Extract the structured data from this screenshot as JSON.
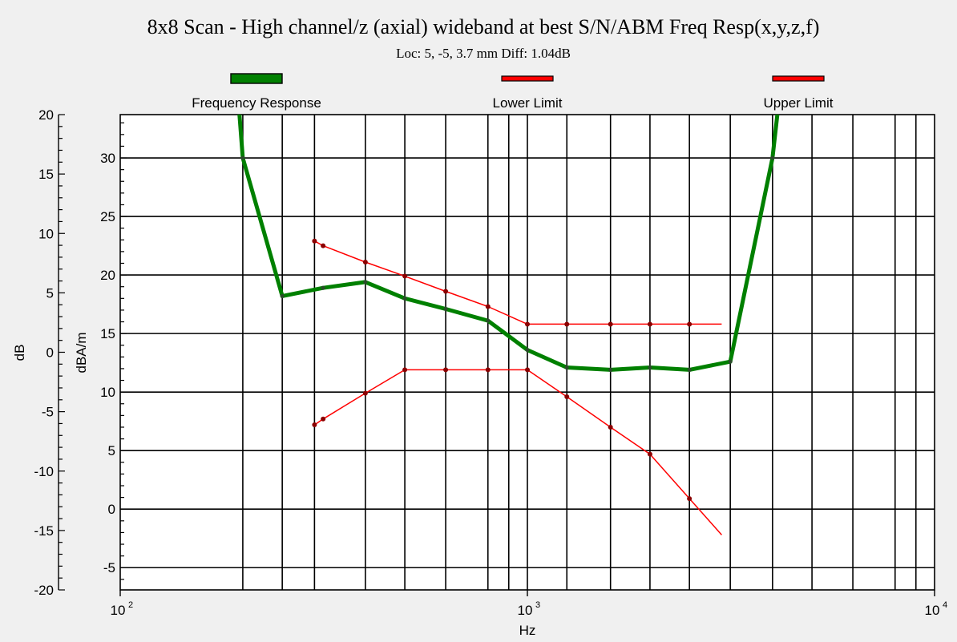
{
  "chart_data": {
    "type": "line",
    "title": "8x8 Scan - High channel/z (axial) wideband at best S/N/ABM Freq Resp(x,y,z,f)",
    "subtitle": "Loc: 5, -5, 3.7 mm Diff: 1.04dB",
    "xlabel": "Hz",
    "ylabel_left": "dB",
    "ylabel_right": "dBA/m",
    "x_scale": "log",
    "xlim": [
      100,
      10000
    ],
    "x_tick_labels": [
      {
        "value": 100,
        "base": "10",
        "exp": "2"
      },
      {
        "value": 1000,
        "base": "10",
        "exp": "3"
      },
      {
        "value": 10000,
        "base": "10",
        "exp": "4"
      }
    ],
    "ylim_left": [
      -20,
      20
    ],
    "y_left_ticks": [
      "20",
      "15",
      "10",
      "5",
      "0",
      "-5",
      "-10",
      "-15",
      "-20"
    ],
    "ylim_right": [
      -6.9,
      33.7
    ],
    "y_right_ticks": [
      "-5",
      "0",
      "5",
      "10",
      "15",
      "20",
      "25",
      "30"
    ],
    "vertical_grid": [
      200,
      250,
      300,
      400,
      500,
      630,
      800,
      900,
      1000,
      1250,
      1600,
      2000,
      2500,
      3150,
      4000,
      5000,
      6300,
      8000,
      9000
    ],
    "grid": true,
    "legend_position": "top",
    "series": [
      {
        "name": "Frequency Response",
        "color": "#008000",
        "axis": "right",
        "points": [
          [
            195,
            35
          ],
          [
            200,
            30
          ],
          [
            250,
            18.2
          ],
          [
            315,
            18.9
          ],
          [
            400,
            19.4
          ],
          [
            500,
            18.0
          ],
          [
            630,
            17.1
          ],
          [
            800,
            16.1
          ],
          [
            1000,
            13.6
          ],
          [
            1250,
            12.1
          ],
          [
            1600,
            11.9
          ],
          [
            2000,
            12.1
          ],
          [
            2500,
            11.9
          ],
          [
            3150,
            12.6
          ],
          [
            4000,
            30.0
          ],
          [
            4150,
            35
          ]
        ],
        "markers": [
          [
            200,
            30
          ],
          [
            250,
            18.2
          ],
          [
            315,
            18.9
          ],
          [
            400,
            19.4
          ],
          [
            500,
            18.0
          ],
          [
            630,
            17.1
          ],
          [
            800,
            16.1
          ],
          [
            1000,
            13.6
          ],
          [
            1250,
            12.1
          ],
          [
            1600,
            11.9
          ],
          [
            2000,
            12.1
          ],
          [
            2500,
            11.9
          ],
          [
            3150,
            12.6
          ],
          [
            4000,
            30.0
          ]
        ]
      },
      {
        "name": "Lower Limit",
        "color": "#ff0000",
        "axis": "right",
        "points": [
          [
            300,
            7.2
          ],
          [
            315,
            7.7
          ],
          [
            400,
            9.9
          ],
          [
            500,
            11.9
          ],
          [
            630,
            11.9
          ],
          [
            800,
            11.9
          ],
          [
            1000,
            11.9
          ],
          [
            1250,
            9.6
          ],
          [
            1600,
            7.0
          ],
          [
            2000,
            4.7
          ],
          [
            2500,
            0.9
          ],
          [
            3000,
            -2.2
          ]
        ],
        "markers": [
          [
            300,
            7.2
          ],
          [
            315,
            7.7
          ],
          [
            400,
            9.9
          ],
          [
            500,
            11.9
          ],
          [
            630,
            11.9
          ],
          [
            800,
            11.9
          ],
          [
            1000,
            11.9
          ],
          [
            1250,
            9.6
          ],
          [
            1600,
            7.0
          ],
          [
            2000,
            4.7
          ],
          [
            2500,
            0.9
          ]
        ]
      },
      {
        "name": "Upper Limit",
        "color": "#ff0000",
        "axis": "right",
        "points": [
          [
            300,
            22.9
          ],
          [
            315,
            22.5
          ],
          [
            400,
            21.1
          ],
          [
            500,
            19.9
          ],
          [
            630,
            18.6
          ],
          [
            800,
            17.3
          ],
          [
            1000,
            15.8
          ],
          [
            1250,
            15.8
          ],
          [
            1600,
            15.8
          ],
          [
            2000,
            15.8
          ],
          [
            2500,
            15.8
          ],
          [
            3000,
            15.8
          ]
        ],
        "markers": [
          [
            300,
            22.9
          ],
          [
            315,
            22.5
          ],
          [
            400,
            21.1
          ],
          [
            500,
            19.9
          ],
          [
            630,
            18.6
          ],
          [
            800,
            17.3
          ],
          [
            1000,
            15.8
          ],
          [
            1250,
            15.8
          ],
          [
            1600,
            15.8
          ],
          [
            2000,
            15.8
          ],
          [
            2500,
            15.8
          ]
        ]
      }
    ]
  }
}
